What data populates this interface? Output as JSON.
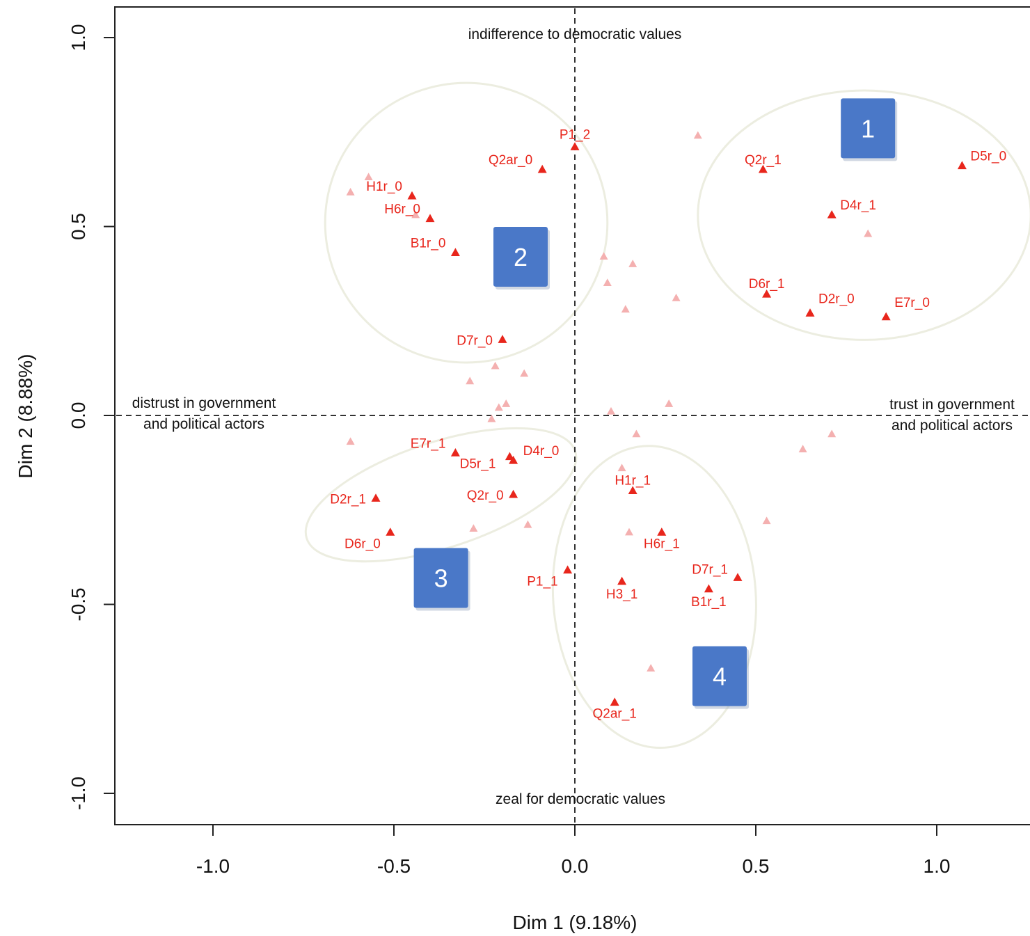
{
  "chart_data": {
    "type": "scatter",
    "xlabel": "Dim 1 (9.18%)",
    "ylabel": "Dim 2 (8.88%)",
    "xlim": [
      -1.27,
      1.27
    ],
    "ylim": [
      -1.08,
      1.08
    ],
    "xticks": [
      -1.0,
      -0.5,
      0.0,
      0.5,
      1.0
    ],
    "yticks": [
      -1.0,
      -0.5,
      0.0,
      0.5,
      1.0
    ],
    "xtick_labels": [
      "-1.0",
      "-0.5",
      "0.0",
      "0.5",
      "1.0"
    ],
    "ytick_labels": [
      "-1.0",
      "-0.5",
      "0.0",
      "0.5",
      "1.0"
    ],
    "reference_lines": {
      "x": 0,
      "y": 0,
      "style": "dashed"
    },
    "grid": false,
    "colors": {
      "labeled_point": "#e8261c",
      "faded_point": "#f4b0b0",
      "ellipse": "#ecede0",
      "cluster_box": "#4a78c8",
      "axis": "#222222"
    },
    "annotations": {
      "top": "indifference to democratic values",
      "bottom": "zeal for democratic values",
      "left": [
        "distrust in government",
        "and political actors"
      ],
      "right": [
        "trust in government",
        "and political actors"
      ]
    },
    "labeled_points": [
      {
        "label": "P1_2",
        "x": 0.0,
        "y": 0.71
      },
      {
        "label": "Q2ar_0",
        "x": -0.09,
        "y": 0.65
      },
      {
        "label": "H1r_0",
        "x": -0.45,
        "y": 0.58
      },
      {
        "label": "H6r_0",
        "x": -0.4,
        "y": 0.52
      },
      {
        "label": "B1r_0",
        "x": -0.33,
        "y": 0.43
      },
      {
        "label": "D7r_0",
        "x": -0.2,
        "y": 0.2
      },
      {
        "label": "Q2r_1",
        "x": 0.52,
        "y": 0.65
      },
      {
        "label": "D5r_0",
        "x": 1.07,
        "y": 0.66
      },
      {
        "label": "D4r_1",
        "x": 0.71,
        "y": 0.53
      },
      {
        "label": "D6r_1",
        "x": 0.53,
        "y": 0.32
      },
      {
        "label": "D2r_0",
        "x": 0.65,
        "y": 0.27
      },
      {
        "label": "E7r_0",
        "x": 0.86,
        "y": 0.26
      },
      {
        "label": "E7r_1",
        "x": -0.33,
        "y": -0.1
      },
      {
        "label": "D4r_0",
        "x": -0.17,
        "y": -0.12
      },
      {
        "label": "D5r_1",
        "x": -0.18,
        "y": -0.11
      },
      {
        "label": "Q2r_0",
        "x": -0.17,
        "y": -0.21
      },
      {
        "label": "D2r_1",
        "x": -0.55,
        "y": -0.22
      },
      {
        "label": "D6r_0",
        "x": -0.51,
        "y": -0.31
      },
      {
        "label": "H1r_1",
        "x": 0.16,
        "y": -0.2
      },
      {
        "label": "H6r_1",
        "x": 0.24,
        "y": -0.31
      },
      {
        "label": "P1_1",
        "x": -0.02,
        "y": -0.41
      },
      {
        "label": "H3_1",
        "x": 0.13,
        "y": -0.44
      },
      {
        "label": "D7r_1",
        "x": 0.45,
        "y": -0.43
      },
      {
        "label": "B1r_1",
        "x": 0.37,
        "y": -0.46
      },
      {
        "label": "Q2ar_1",
        "x": 0.11,
        "y": -0.76
      }
    ],
    "faded_points": [
      {
        "x": 0.34,
        "y": 0.74
      },
      {
        "x": -0.57,
        "y": 0.63
      },
      {
        "x": -0.62,
        "y": 0.59
      },
      {
        "x": -0.44,
        "y": 0.53
      },
      {
        "x": 0.81,
        "y": 0.48
      },
      {
        "x": 0.08,
        "y": 0.42
      },
      {
        "x": 0.16,
        "y": 0.4
      },
      {
        "x": 0.09,
        "y": 0.35
      },
      {
        "x": 0.28,
        "y": 0.31
      },
      {
        "x": 0.14,
        "y": 0.28
      },
      {
        "x": -0.22,
        "y": 0.13
      },
      {
        "x": -0.14,
        "y": 0.11
      },
      {
        "x": -0.29,
        "y": 0.09
      },
      {
        "x": 0.26,
        "y": 0.03
      },
      {
        "x": -0.19,
        "y": 0.03
      },
      {
        "x": -0.21,
        "y": 0.02
      },
      {
        "x": 0.1,
        "y": 0.01
      },
      {
        "x": -0.23,
        "y": -0.01
      },
      {
        "x": 0.17,
        "y": -0.05
      },
      {
        "x": 0.71,
        "y": -0.05
      },
      {
        "x": -0.62,
        "y": -0.07
      },
      {
        "x": 0.63,
        "y": -0.09
      },
      {
        "x": 0.13,
        "y": -0.14
      },
      {
        "x": -0.13,
        "y": -0.29
      },
      {
        "x": 0.53,
        "y": -0.28
      },
      {
        "x": -0.28,
        "y": -0.3
      },
      {
        "x": 0.15,
        "y": -0.31
      },
      {
        "x": 0.21,
        "y": -0.67
      }
    ],
    "clusters": [
      {
        "id": "1",
        "ellipse": {
          "cx": 0.8,
          "cy": 0.53,
          "rx": 0.46,
          "ry": 0.33,
          "rotation": 0
        },
        "box_center": {
          "x": 0.81,
          "y": 0.76
        }
      },
      {
        "id": "2",
        "ellipse": {
          "cx": -0.3,
          "cy": 0.51,
          "rx": 0.39,
          "ry": 0.37,
          "rotation": 0
        },
        "box_center": {
          "x": -0.15,
          "y": 0.42
        }
      },
      {
        "id": "3",
        "ellipse": {
          "cx": -0.37,
          "cy": -0.21,
          "rx": 0.39,
          "ry": 0.14,
          "rotation": -18
        },
        "box_center": {
          "x": -0.37,
          "y": -0.43
        }
      },
      {
        "id": "4",
        "ellipse": {
          "cx": 0.22,
          "cy": -0.48,
          "rx": 0.28,
          "ry": 0.4,
          "rotation": -4
        },
        "box_center": {
          "x": 0.4,
          "y": -0.69
        }
      }
    ]
  }
}
